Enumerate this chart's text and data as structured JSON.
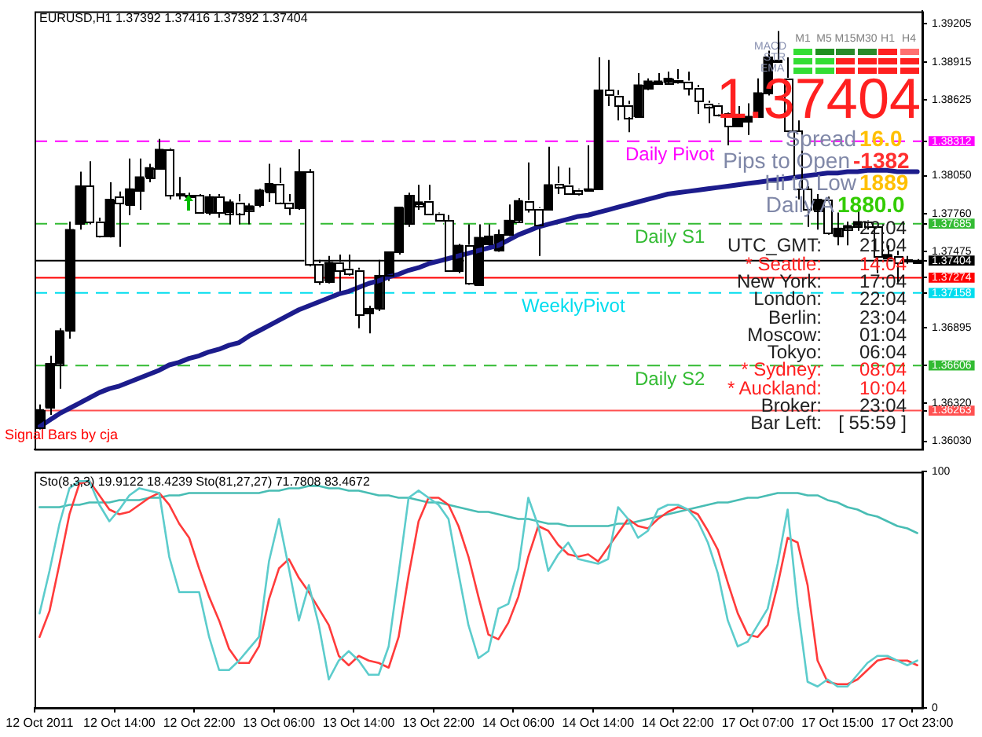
{
  "chart_data": [
    {
      "type": "candlestick",
      "title": "EURUSD,H1  1.37392 1.37416 1.37392 1.37404",
      "categories": [
        null,
        null,
        null,
        null,
        null,
        null,
        null,
        null,
        null,
        null,
        null,
        null,
        null,
        null,
        null,
        null,
        null,
        null,
        null,
        null,
        null,
        null,
        null,
        null,
        null,
        null,
        null,
        null,
        null,
        null,
        null,
        null,
        null,
        null,
        null,
        null,
        null,
        null,
        null,
        null,
        null,
        null,
        null,
        null,
        null,
        null,
        null,
        null,
        null,
        null,
        null,
        null,
        null,
        null,
        null,
        null,
        null,
        null,
        null,
        null,
        null,
        null,
        null,
        null,
        null,
        null,
        null,
        null,
        null,
        null,
        null,
        null,
        null,
        null,
        null,
        null,
        null,
        null,
        null,
        null,
        null,
        null,
        null,
        null,
        null,
        null,
        null,
        null,
        null
      ],
      "ohlc": [
        [
          1.3614,
          1.3631,
          1.3612,
          1.3627
        ],
        [
          1.3629,
          1.3668,
          1.3623,
          1.3662
        ],
        [
          1.3662,
          1.3689,
          1.3643,
          1.3687
        ],
        [
          1.3687,
          1.377,
          1.3681,
          1.3764
        ],
        [
          1.3768,
          1.3808,
          1.3764,
          1.3797
        ],
        [
          1.3797,
          1.3816,
          1.3768,
          1.377
        ],
        [
          1.377,
          1.3773,
          1.3758,
          1.3759
        ],
        [
          1.3759,
          1.38,
          1.3758,
          1.3787
        ],
        [
          1.3789,
          1.3793,
          1.3751,
          1.3784
        ],
        [
          1.3783,
          1.3818,
          1.3775,
          1.3795
        ],
        [
          1.3794,
          1.3818,
          1.3779,
          1.3804
        ],
        [
          1.3804,
          1.3814,
          1.38,
          1.3811
        ],
        [
          1.3811,
          1.3833,
          1.381,
          1.3825
        ],
        [
          1.3825,
          1.3826,
          1.3787,
          1.379
        ],
        [
          1.3791,
          1.3804,
          1.3787,
          1.379
        ],
        [
          1.3789,
          1.3792,
          1.3787,
          1.379
        ],
        [
          1.379,
          1.3791,
          1.3776,
          1.3777
        ],
        [
          1.3777,
          1.3791,
          1.3775,
          1.3789
        ],
        [
          1.3789,
          1.3791,
          1.3773,
          1.3777
        ],
        [
          1.3777,
          1.3787,
          1.3768,
          1.3785
        ],
        [
          1.3785,
          1.3791,
          1.3768,
          1.3777
        ],
        [
          1.3779,
          1.3784,
          1.3768,
          1.3782
        ],
        [
          1.3783,
          1.3795,
          1.3781,
          1.3794
        ],
        [
          1.3793,
          1.3814,
          1.3785,
          1.3799
        ],
        [
          1.3799,
          1.3811,
          1.3784,
          1.3785
        ],
        [
          1.3785,
          1.3791,
          1.3775,
          1.3781
        ],
        [
          1.378,
          1.3825,
          1.3779,
          1.3808
        ],
        [
          1.3808,
          1.381,
          1.3736,
          1.3738
        ],
        [
          1.3738,
          1.3741,
          1.3722,
          1.3725
        ],
        [
          1.3725,
          1.3744,
          1.3723,
          1.3739
        ],
        [
          1.3739,
          1.3745,
          1.3716,
          1.3733
        ],
        [
          1.3734,
          1.3745,
          1.3729,
          1.3731
        ],
        [
          1.3733,
          1.3735,
          1.3689,
          1.37
        ],
        [
          1.37,
          1.3706,
          1.3685,
          1.3704
        ],
        [
          1.3704,
          1.3741,
          1.3702,
          1.3729
        ],
        [
          1.3729,
          1.3747,
          1.3725,
          1.3747
        ],
        [
          1.3747,
          1.3781,
          1.3745,
          1.3781
        ],
        [
          1.3768,
          1.3792,
          1.3766,
          1.379
        ],
        [
          1.3783,
          1.3798,
          1.3779,
          1.3785
        ],
        [
          1.3786,
          1.3798,
          1.3775,
          1.3776
        ],
        [
          1.3776,
          1.3777,
          1.377,
          1.3771
        ],
        [
          1.3771,
          1.3775,
          1.3732,
          1.3733
        ],
        [
          1.3733,
          1.3753,
          1.3731,
          1.3752
        ],
        [
          1.3752,
          1.3768,
          1.3722,
          1.3723
        ],
        [
          1.3722,
          1.3768,
          1.3721,
          1.3758
        ],
        [
          1.3753,
          1.3768,
          1.3751,
          1.3759
        ],
        [
          1.3748,
          1.3764,
          1.3747,
          1.376
        ],
        [
          1.376,
          1.3783,
          1.3759,
          1.3771
        ],
        [
          1.3771,
          1.3788,
          1.377,
          1.3786
        ],
        [
          1.3786,
          1.3815,
          1.3777,
          1.378
        ],
        [
          1.378,
          1.3781,
          1.3744,
          1.3768
        ],
        [
          1.378,
          1.3827,
          1.3779,
          1.3798
        ],
        [
          1.3799,
          1.3812,
          1.3791,
          1.3797
        ],
        [
          1.3798,
          1.3811,
          1.3791,
          1.3792
        ],
        [
          1.3794,
          1.3795,
          1.379,
          1.3792
        ],
        [
          1.3794,
          1.3828,
          1.3793,
          1.3795
        ],
        [
          1.3795,
          1.3895,
          1.3794,
          1.387
        ],
        [
          1.387,
          1.3893,
          1.3858,
          1.3866
        ],
        [
          1.3866,
          1.387,
          1.3847,
          1.3859
        ],
        [
          1.3859,
          1.3862,
          1.3838,
          1.385
        ],
        [
          1.385,
          1.3883,
          1.3849,
          1.3874
        ],
        [
          1.3872,
          1.3879,
          1.387,
          1.3877
        ],
        [
          1.3876,
          1.3883,
          1.3875,
          1.3877
        ],
        [
          1.3876,
          1.3884,
          1.3875,
          1.3879
        ],
        [
          1.3878,
          1.3886,
          1.3875,
          1.3877
        ],
        [
          1.3877,
          1.3884,
          1.3866,
          1.3872
        ],
        [
          1.3872,
          1.3874,
          1.3852,
          1.3862
        ],
        [
          1.386,
          1.3862,
          1.3845,
          1.3858
        ],
        [
          1.3859,
          1.386,
          1.385,
          1.3852
        ],
        [
          1.3852,
          1.3853,
          1.3828,
          1.3843
        ],
        [
          1.3843,
          1.3858,
          1.3842,
          1.3849
        ],
        [
          1.3847,
          1.386,
          1.3836,
          1.385
        ],
        [
          1.385,
          1.3879,
          1.3849,
          1.3868
        ],
        [
          1.3868,
          1.39,
          1.3866,
          1.3895
        ],
        [
          1.3893,
          1.3915,
          1.3891,
          1.3892
        ],
        [
          1.3879,
          1.3895,
          1.3838,
          1.3839
        ],
        [
          1.3839,
          1.3847,
          1.3787,
          1.3795
        ],
        [
          1.3795,
          1.3797,
          1.3766,
          1.3779
        ],
        [
          1.3779,
          1.3791,
          1.3764,
          1.3787
        ],
        [
          1.3787,
          1.3789,
          1.376,
          1.3762
        ],
        [
          1.3759,
          1.3777,
          1.3752,
          1.3765
        ],
        [
          1.3765,
          1.377,
          1.3752,
          1.3767
        ],
        [
          1.3767,
          1.378,
          1.3763,
          1.377
        ],
        [
          1.377,
          1.3771,
          1.3764,
          1.3766
        ],
        [
          1.3766,
          1.3767,
          1.3731,
          1.3743
        ],
        [
          1.3743,
          1.3752,
          1.3741,
          1.3745
        ],
        [
          1.3744,
          1.3748,
          1.3723,
          1.3739
        ],
        [
          1.3741,
          1.3744,
          1.3738,
          1.374
        ],
        [
          1.37392,
          1.37416,
          1.37392,
          1.37404
        ]
      ],
      "colors": [
        "#000000",
        "#000000",
        "#000000",
        "#000000",
        "#000000",
        "#ffffff",
        "#ffffff",
        "#000000",
        "#ffffff",
        "#000000",
        "#000000",
        "#000000",
        "#000000",
        "#ffffff",
        "#ffffff",
        "#000000",
        "#ffffff",
        "#000000",
        "#ffffff",
        "#000000",
        "#ffffff",
        "#000000",
        "#000000",
        "#000000",
        "#ffffff",
        "#ffffff",
        "#000000",
        "#ffffff",
        "#ffffff",
        "#000000",
        "#ffffff",
        "#ffffff",
        "#ffffff",
        "#000000",
        "#000000",
        "#000000",
        "#000000",
        "#000000",
        "#000000",
        "#ffffff",
        "#ffffff",
        "#ffffff",
        "#000000",
        "#ffffff",
        "#000000",
        "#000000",
        "#000000",
        "#000000",
        "#000000",
        "#ffffff",
        "#ffffff",
        "#000000",
        "#ffffff",
        "#ffffff",
        "#ffffff",
        "#000000",
        "#000000",
        "#ffffff",
        "#ffffff",
        "#ffffff",
        "#000000",
        "#000000",
        "#000000",
        "#000000",
        "#ffffff",
        "#ffffff",
        "#ffffff",
        "#ffffff",
        "#ffffff",
        "#ffffff",
        "#000000",
        "#000000",
        "#000000",
        "#000000",
        "#ffffff",
        "#ffffff",
        "#ffffff",
        "#ffffff",
        "#000000",
        "#ffffff",
        "#000000",
        "#000000",
        "#000000",
        "#ffffff",
        "#ffffff",
        "#000000",
        "#ffffff",
        "#ffffff",
        "#000000"
      ],
      "series": [
        {
          "type": "line",
          "color": "#1c1c8c",
          "values": [
            1.3614,
            1.3619,
            1.3624,
            1.3628,
            1.3632,
            1.3636,
            1.364,
            1.3643,
            1.3645,
            1.3648,
            1.3651,
            1.3654,
            1.3657,
            1.3661,
            1.3663,
            1.3666,
            1.3668,
            1.3671,
            1.3673,
            1.3676,
            1.3678,
            1.3683,
            1.3687,
            1.3691,
            1.3695,
            1.3699,
            1.3703,
            1.3706,
            1.3709,
            1.3712,
            1.3715,
            1.3717,
            1.372,
            1.3723,
            1.3725,
            1.3728,
            1.373,
            1.3733,
            1.3735,
            1.3738,
            1.374,
            1.3742,
            1.3744,
            1.3746,
            1.3748,
            1.375,
            1.3752,
            1.3756,
            1.376,
            1.3763,
            1.3766,
            1.3768,
            1.377,
            1.3772,
            1.3774,
            1.3775,
            1.3777,
            1.3779,
            1.3781,
            1.3783,
            1.3785,
            1.3787,
            1.3789,
            1.3791,
            1.3792,
            1.3793,
            1.3794,
            1.3795,
            1.3796,
            1.3797,
            1.3798,
            1.3799,
            1.38,
            1.3801,
            1.3802,
            1.3803,
            1.3804,
            1.3805,
            1.3806,
            1.3807,
            1.3807,
            1.3808,
            1.3808,
            1.3809,
            1.3809,
            1.3809,
            1.3808,
            1.3808,
            1.3808
          ]
        }
      ],
      "ylim": [
        1.3597,
        1.393
      ],
      "yticks": [
        {
          "value": 1.3603,
          "label": "1.36030"
        },
        1.36263,
        {
          "value": 1.3632,
          "label": "1.36320"
        },
        1.36606,
        1.36895,
        1.37158,
        1.37274,
        1.37404,
        1.37475,
        1.37685,
        {
          "value": 1.3776,
          "label": "1.37760"
        },
        {
          "value": 1.3805,
          "label": "1.38050"
        },
        1.38312,
        1.38625,
        1.38915,
        1.39205
      ],
      "grid": false,
      "legend": false,
      "tick_labels": "y",
      "ref_lines": [
        {
          "axis": "y",
          "value": 1.38312,
          "label": "Daily Pivot",
          "color": "#ff00ff",
          "line_style": "dashed"
        },
        {
          "axis": "y",
          "value": 1.37685,
          "label": "Daily S1",
          "color": "#33bb33",
          "line_style": "dashed"
        },
        {
          "axis": "y",
          "value": 1.37404,
          "color": "#000000",
          "line_style": "solid"
        },
        {
          "axis": "y",
          "value": 1.37274,
          "color": "#ff0000",
          "line_style": "solid"
        },
        {
          "axis": "y",
          "value": 1.37158,
          "label": "WeeklyPivot",
          "color": "#00ddee",
          "line_style": "dashed"
        },
        {
          "axis": "y",
          "value": 1.36606,
          "label": "Daily S2",
          "color": "#33bb33",
          "line_style": "dashed"
        },
        {
          "axis": "y",
          "value": 1.36263,
          "color": "#ff5050",
          "line_style": "solid"
        }
      ],
      "annotations": [
        "Signal Bars by cja",
        "MACD",
        "STR",
        "EMA",
        "M1",
        "M5",
        "M15",
        "M30",
        "H1",
        "H4",
        "1.37404",
        "Spread",
        "16.0",
        "Pips to Open",
        "-1382",
        "Hi to Low",
        "1889",
        "Daily A",
        "1880.0",
        "22:04",
        "UTC_GMT:",
        "21:04",
        "* Seattle:",
        "14:04",
        "New York:",
        "17:04",
        "London:",
        "22:04",
        "Berlin:",
        "23:04",
        "Moscow:",
        "01:04",
        "Tokyo:",
        "06:04",
        "* Sydney:",
        "08:04",
        "* Auckland:",
        "10:04",
        "Broker:",
        "23:04",
        "Bar Left:",
        "[ 55:59 ]"
      ]
    },
    {
      "type": "line",
      "title": "Sto(8,3,3) 19.9122 18.4239  Sto(81,27,27) 71.7808 83.4672",
      "categories": [
        "12 Oct 2011",
        null,
        null,
        null,
        null,
        null,
        null,
        null,
        "12 Oct 14:00",
        null,
        null,
        null,
        null,
        null,
        null,
        null,
        "12 Oct 22:00",
        null,
        null,
        null,
        null,
        null,
        null,
        null,
        "13 Oct 06:00",
        null,
        null,
        null,
        null,
        null,
        null,
        null,
        "13 Oct 14:00",
        null,
        null,
        null,
        null,
        null,
        null,
        null,
        "13 Oct 22:00",
        null,
        null,
        null,
        null,
        null,
        null,
        null,
        "14 Oct 06:00",
        null,
        null,
        null,
        null,
        null,
        null,
        null,
        "14 Oct 14:00",
        null,
        null,
        null,
        null,
        null,
        null,
        null,
        "14 Oct 22:00",
        null,
        null,
        null,
        null,
        null,
        null,
        null,
        "17 Oct 07:00",
        null,
        null,
        null,
        null,
        null,
        null,
        null,
        "17 Oct 15:00",
        null,
        null,
        null,
        null,
        null,
        null,
        null,
        "17 Oct 23:00"
      ],
      "series": [
        {
          "color": "#5ccccc",
          "values": [
            40,
            58,
            78,
            93,
            96,
            96,
            86,
            79,
            84,
            90,
            93,
            92,
            91,
            64,
            49,
            49,
            49,
            30,
            16,
            16,
            20,
            25,
            30,
            62,
            80,
            59,
            37,
            52,
            35,
            12,
            20,
            24,
            20,
            14,
            14,
            26,
            57,
            89,
            92,
            89,
            86,
            80,
            57,
            35,
            21,
            24,
            42,
            44,
            59,
            89,
            77,
            58,
            65,
            70,
            63,
            62,
            61,
            63,
            85,
            80,
            72,
            75,
            84,
            86,
            86,
            84,
            79,
            70,
            57,
            37,
            26,
            28,
            35,
            42,
            61,
            84,
            43,
            11,
            9,
            12,
            9,
            9,
            14,
            19,
            22,
            22,
            20,
            18,
            20
          ]
        },
        {
          "color": "#ff3b3b",
          "values": [
            30,
            41,
            61,
            82,
            95,
            96,
            90,
            84,
            82,
            83,
            86,
            89,
            91,
            86,
            78,
            72,
            59,
            47,
            37,
            25,
            19,
            19,
            26,
            46,
            59,
            63,
            55,
            49,
            42,
            35,
            22,
            18,
            22,
            20,
            19,
            17,
            30,
            56,
            79,
            89,
            89,
            86,
            77,
            64,
            47,
            31,
            29,
            36,
            47,
            64,
            77,
            75,
            69,
            65,
            64,
            65,
            62,
            68,
            74,
            80,
            77,
            76,
            80,
            83,
            85,
            84,
            82,
            75,
            67,
            53,
            40,
            31,
            30,
            35,
            52,
            72,
            70,
            52,
            20,
            11,
            10,
            10,
            12,
            16,
            20,
            21,
            20,
            20,
            18
          ]
        },
        {
          "color": "#48bdb4",
          "values": [
            85,
            85,
            85,
            86,
            86,
            87,
            87,
            87,
            88,
            88,
            88,
            89,
            89,
            90,
            90,
            91,
            91,
            91,
            91,
            91,
            91,
            91,
            91,
            92,
            92,
            93,
            93,
            94,
            94,
            93,
            93,
            92,
            92,
            91,
            90,
            90,
            89,
            89,
            88,
            87,
            87,
            86,
            85,
            84,
            83,
            83,
            82,
            81,
            80,
            80,
            79,
            78,
            78,
            77,
            77,
            77,
            77,
            77,
            78,
            78,
            79,
            80,
            81,
            82,
            83,
            84,
            85,
            86,
            87,
            87,
            88,
            89,
            89,
            90,
            91,
            91,
            91,
            90,
            90,
            88,
            87,
            85,
            84,
            82,
            81,
            79,
            77,
            76,
            74
          ]
        }
      ],
      "ylim": [
        0,
        100
      ],
      "yticks": [
        0,
        100
      ],
      "grid": false,
      "legend": false
    }
  ]
}
